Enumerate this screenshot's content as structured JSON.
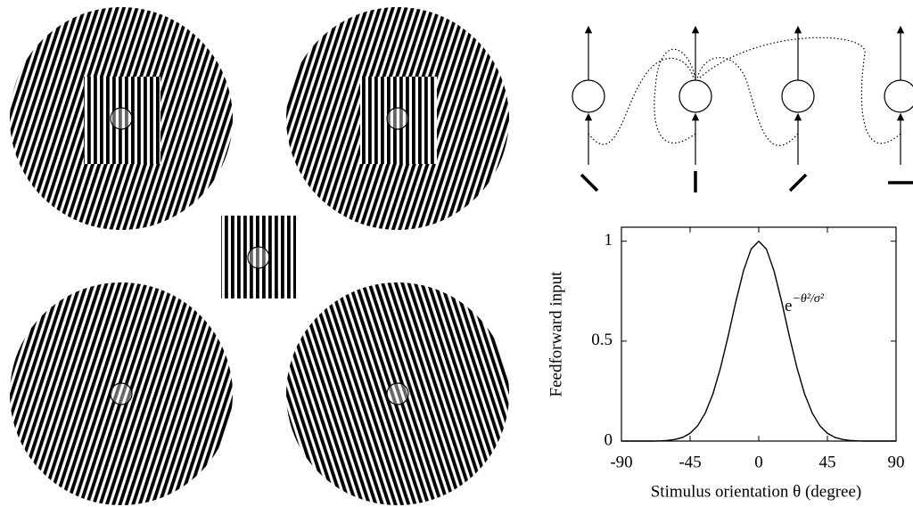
{
  "chart_data": {
    "type": "line",
    "x_label": "Stimulus orientation θ (degree)",
    "y_label": "Feedforward input",
    "annotation": {
      "base": "e",
      "exponent": "−θ²/σ²"
    },
    "color": "#000000",
    "x": [
      -90,
      -85,
      -80,
      -75,
      -70,
      -65,
      -60,
      -55,
      -50,
      -45,
      -40,
      -35,
      -30,
      -25,
      -20,
      -15,
      -10,
      -5,
      0,
      5,
      10,
      15,
      20,
      25,
      30,
      35,
      40,
      45,
      50,
      55,
      60,
      65,
      70,
      75,
      80,
      85,
      90
    ],
    "values": [
      0,
      0,
      0,
      0,
      0,
      0.001,
      0.003,
      0.008,
      0.018,
      0.039,
      0.077,
      0.141,
      0.237,
      0.368,
      0.527,
      0.698,
      0.852,
      0.961,
      1,
      0.961,
      0.852,
      0.698,
      0.527,
      0.368,
      0.237,
      0.141,
      0.077,
      0.039,
      0.018,
      0.008,
      0.003,
      0.001,
      0,
      0,
      0,
      0,
      0
    ],
    "xlim": [
      -90,
      90
    ],
    "xticks": [
      -90,
      -45,
      0,
      45,
      90
    ],
    "ylim": [
      0,
      1.07
    ],
    "yticks": [
      0,
      0.5,
      1
    ]
  }
}
